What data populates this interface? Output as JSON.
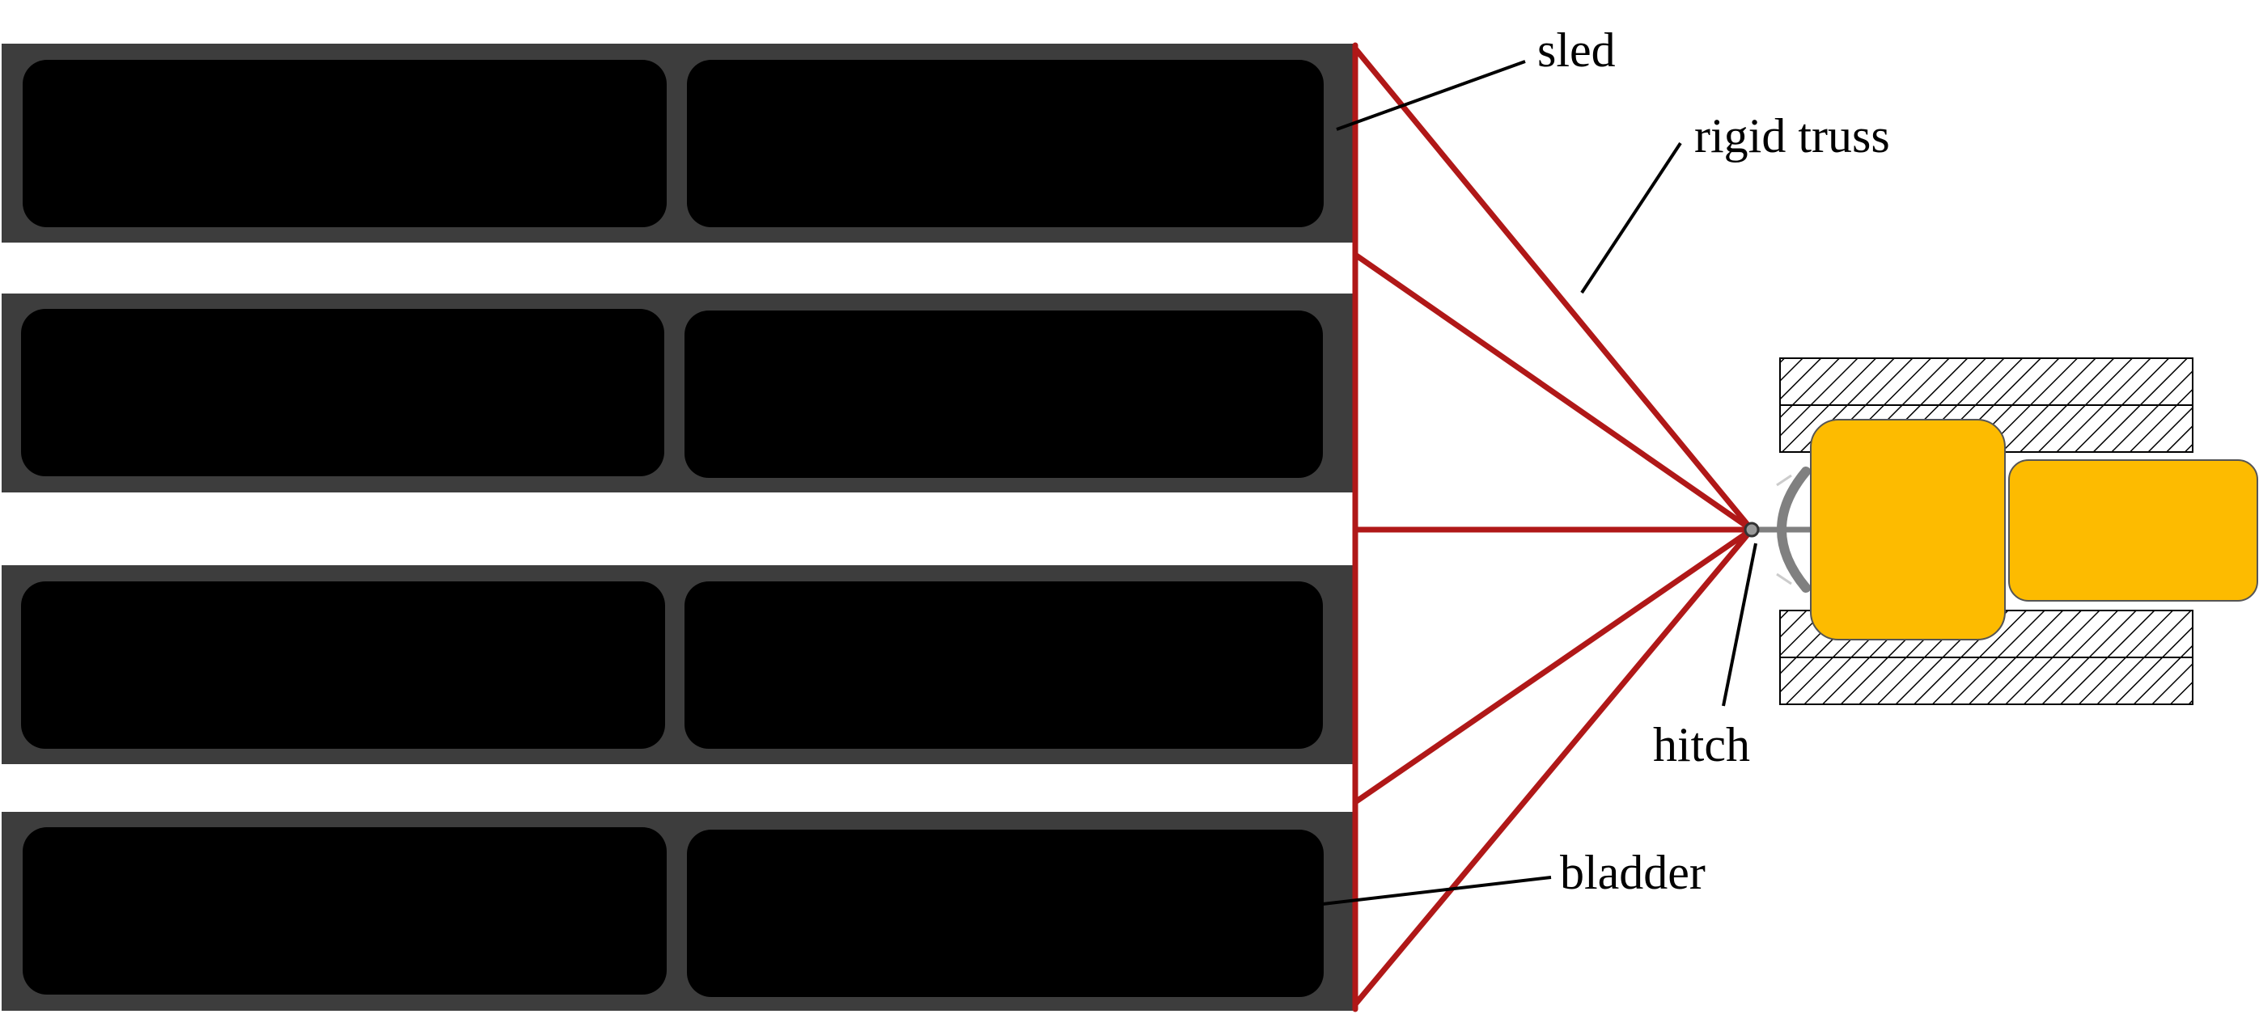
{
  "diagram": {
    "labels": {
      "sled": "sled",
      "rigid_truss": "rigid truss",
      "hitch": "hitch",
      "bladder": "bladder"
    },
    "colors": {
      "sled_frame": "#3d3d3d",
      "bladder": "#000000",
      "truss": "#b01818",
      "tractor_body": "#fdbb00",
      "tractor_outline": "#555555",
      "hitch_arc": "#808080"
    },
    "sled_count": 4,
    "bladders_per_sled": 2
  }
}
